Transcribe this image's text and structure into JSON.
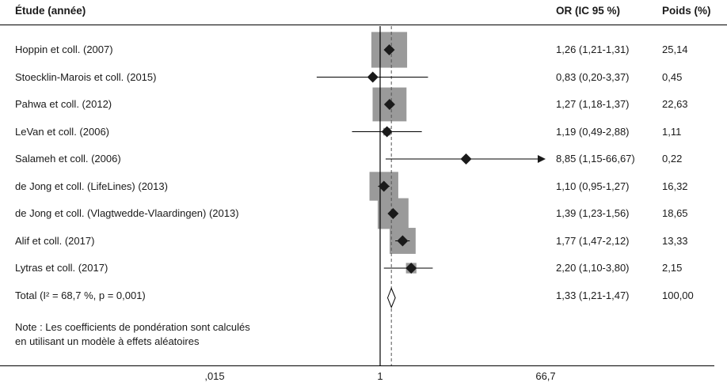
{
  "header": {
    "study": "Étude (année)",
    "or": "OR (IC 95 %)",
    "weight": "Poids (%)"
  },
  "note": {
    "line1": "Note : Les coefficients de pondération sont calculés",
    "line2": "en utilisant un modèle à effets aléatoires"
  },
  "axis": {
    "ticks": [
      {
        "label": ",015",
        "value": 0.015
      },
      {
        "label": "1",
        "value": 1
      },
      {
        "label": "66,7",
        "value": 66.7
      }
    ]
  },
  "chart_data": {
    "type": "forest",
    "x_scale": "log",
    "xlim": [
      0.015,
      66.7
    ],
    "reference_line": 1,
    "pooled_line": 1.33,
    "colors": {
      "box": "#9a9a9a",
      "marker": "#1a1a1a",
      "line": "#000000"
    },
    "studies": [
      {
        "label": "Hoppin et coll. (2007)",
        "or": 1.26,
        "lo": 1.21,
        "hi": 1.31,
        "or_text": "1,26 (1,21-1,31)",
        "weight": 25.14,
        "weight_text": "25,14"
      },
      {
        "label": "Stoecklin-Marois et coll. (2015)",
        "or": 0.83,
        "lo": 0.2,
        "hi": 3.37,
        "or_text": "0,83 (0,20-3,37)",
        "weight": 0.45,
        "weight_text": "0,45"
      },
      {
        "label": "Pahwa et coll. (2012)",
        "or": 1.27,
        "lo": 1.18,
        "hi": 1.37,
        "or_text": "1,27 (1,18-1,37)",
        "weight": 22.63,
        "weight_text": "22,63"
      },
      {
        "label": "LeVan et coll. (2006)",
        "or": 1.19,
        "lo": 0.49,
        "hi": 2.88,
        "or_text": "1,19 (0,49-2,88)",
        "weight": 1.11,
        "weight_text": "1,11"
      },
      {
        "label": "Salameh et coll. (2006)",
        "or": 8.85,
        "lo": 1.15,
        "hi": 66.67,
        "or_text": "8,85 (1,15-66,67)",
        "weight": 0.22,
        "weight_text": "0,22",
        "arrow": true
      },
      {
        "label": "de Jong et coll. (LifeLines) (2013)",
        "or": 1.1,
        "lo": 0.95,
        "hi": 1.27,
        "or_text": "1,10 (0,95-1,27)",
        "weight": 16.32,
        "weight_text": "16,32"
      },
      {
        "label": "de Jong et coll. (Vlagtwedde-Vlaardingen) (2013)",
        "or": 1.39,
        "lo": 1.23,
        "hi": 1.56,
        "or_text": "1,39 (1,23-1,56)",
        "weight": 18.65,
        "weight_text": "18,65"
      },
      {
        "label": "Alif et coll. (2017)",
        "or": 1.77,
        "lo": 1.47,
        "hi": 2.12,
        "or_text": "1,77 (1,47-2,12)",
        "weight": 13.33,
        "weight_text": "13,33"
      },
      {
        "label": "Lytras et coll. (2017)",
        "or": 2.2,
        "lo": 1.1,
        "hi": 3.8,
        "or_text": "2,20 (1,10-3,80)",
        "weight": 2.15,
        "weight_text": "2,15"
      }
    ],
    "total": {
      "label": "Total (I² = 68,7 %, p = 0,001)",
      "or": 1.33,
      "lo": 1.21,
      "hi": 1.47,
      "or_text": "1,33 (1,21-1,47)",
      "weight": 100.0,
      "weight_text": "100,00"
    }
  }
}
